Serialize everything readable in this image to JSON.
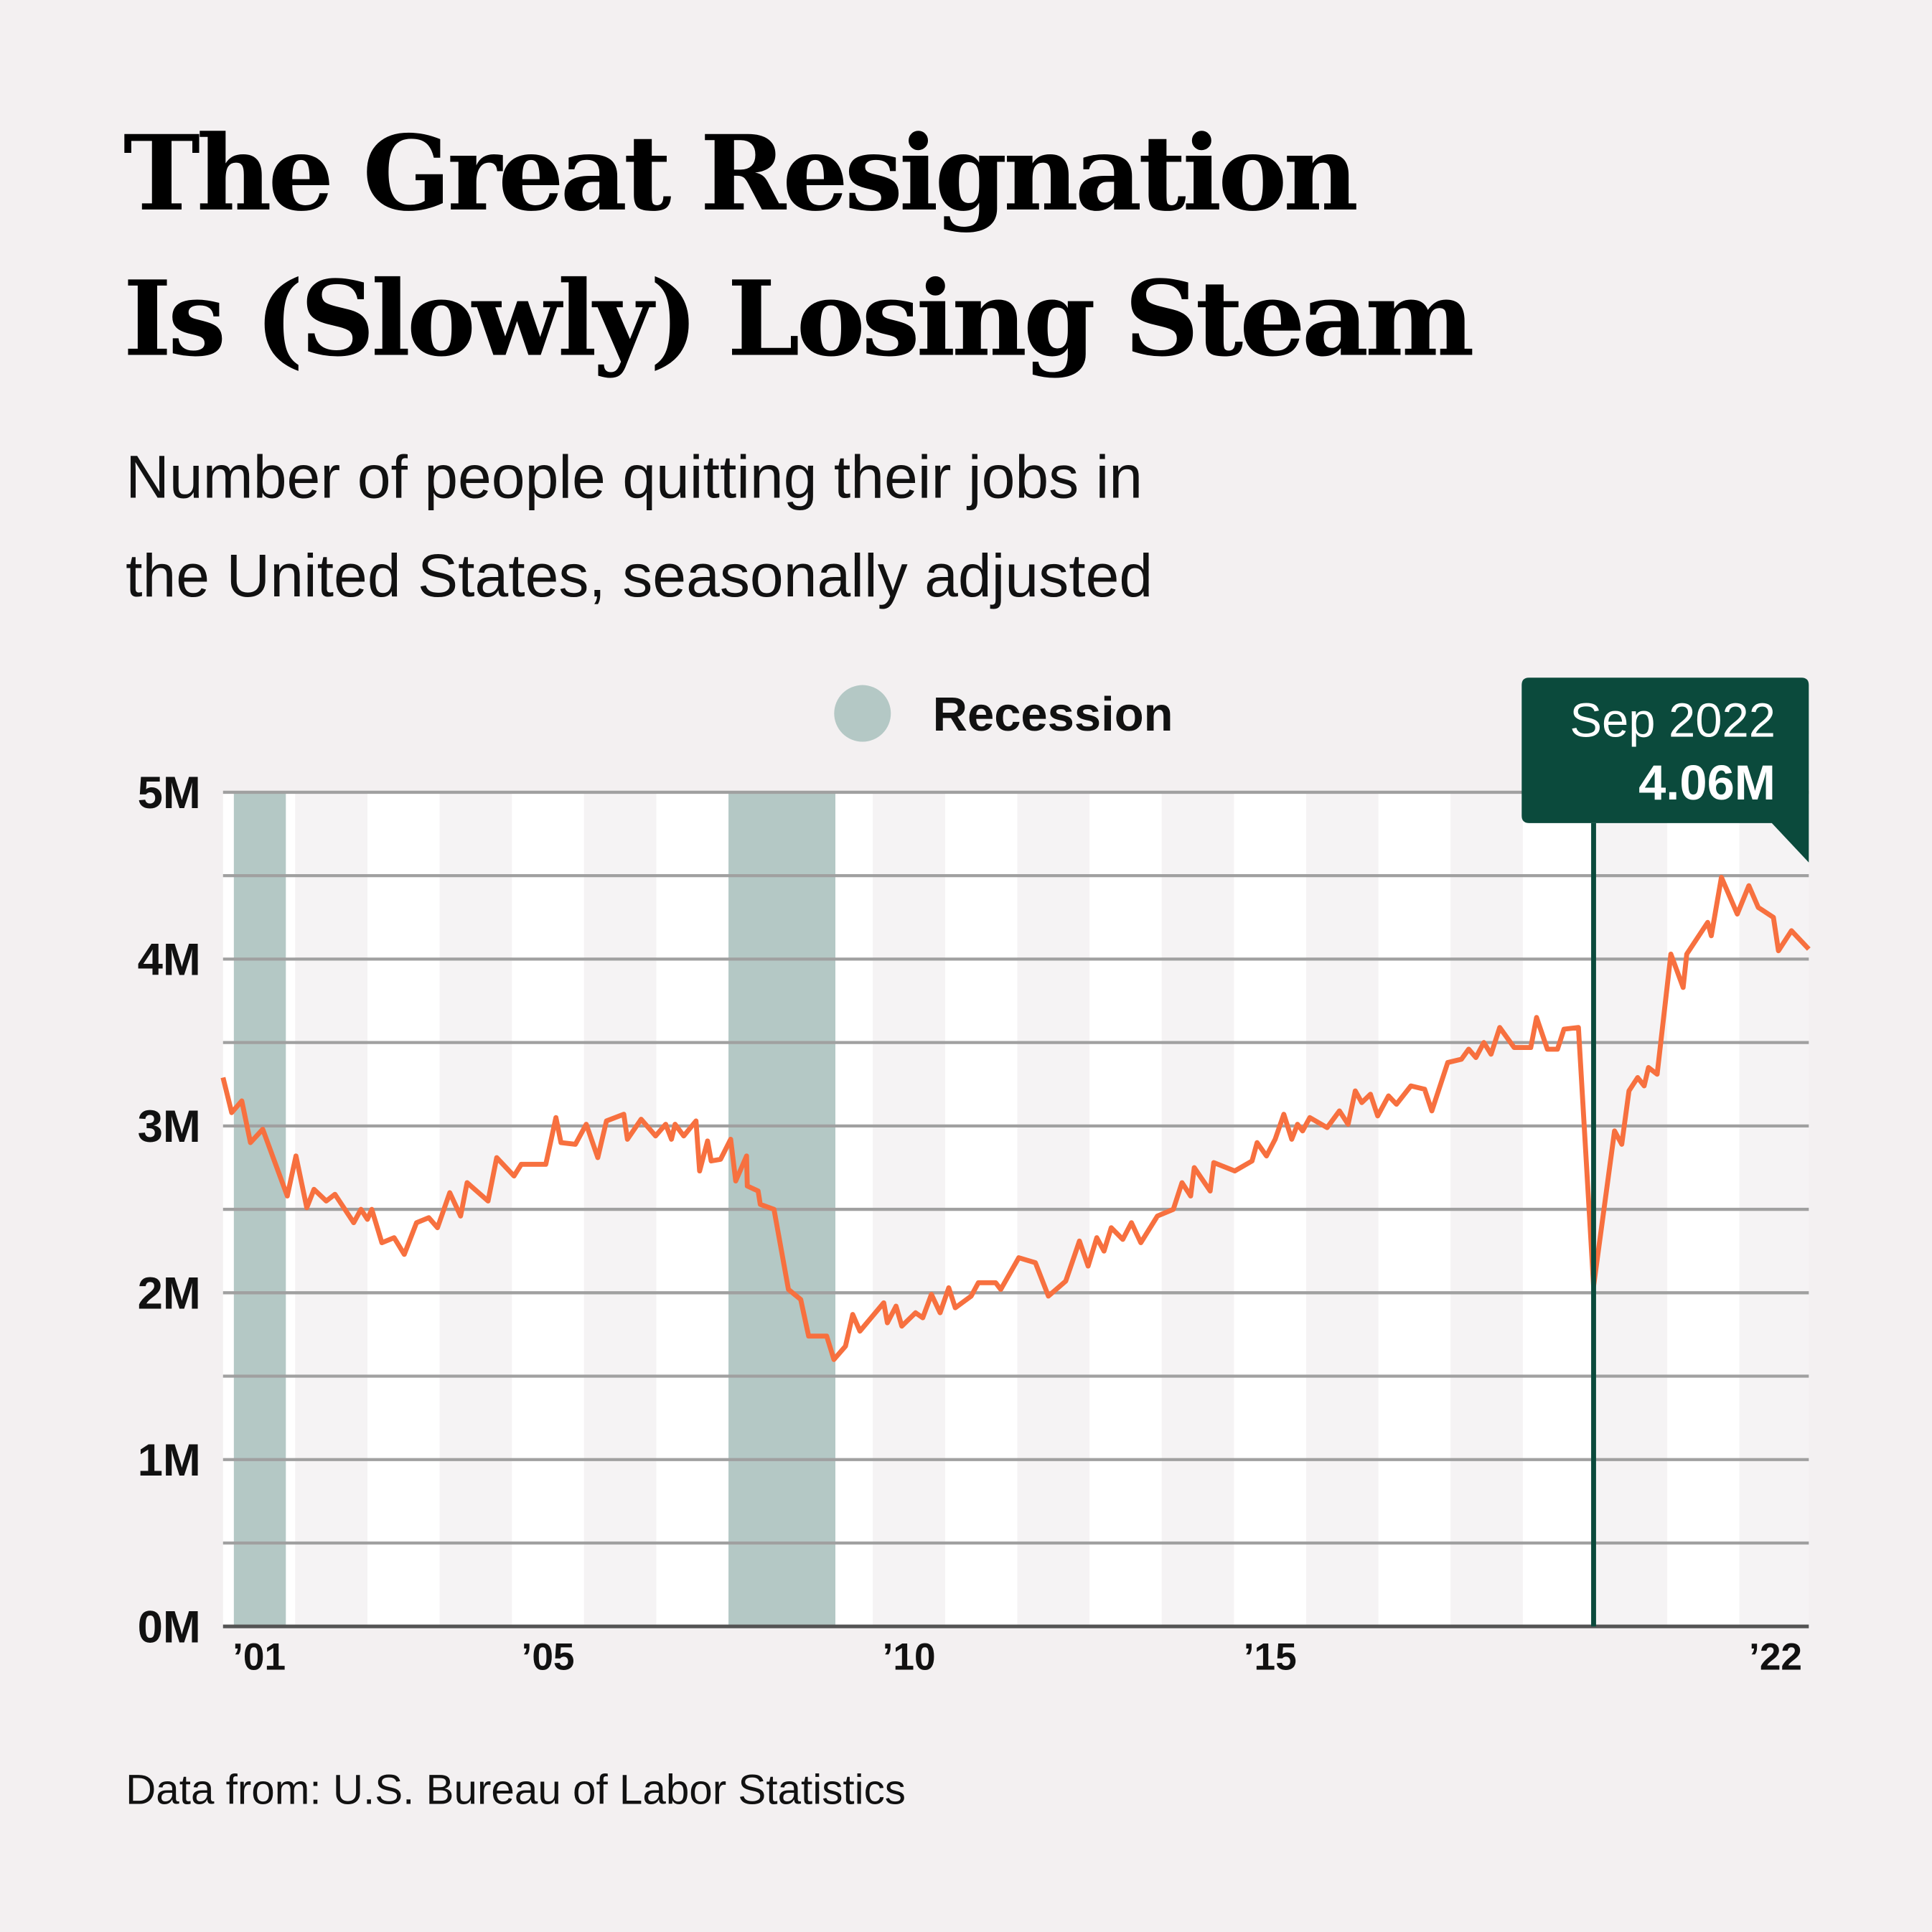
{
  "title_line1": "The Great Resignation",
  "title_line2": "Is (Slowly) Losing Steam",
  "subtitle_line1": "Number of people quitting their jobs in",
  "subtitle_line2": "the United States, seasonally adjusted",
  "footer": "Data from: U.S. Bureau of Labor Statistics",
  "colors": {
    "background": "#f3f0f1",
    "line": "#f7703f",
    "recession": "#b4c8c5",
    "callout": "#0b4a3c",
    "grid": "#a0a0a0",
    "band_light": "#f5f3f4",
    "band_white": "#ffffff"
  },
  "chart_data": {
    "type": "line",
    "title": "The Great Resignation Is (Slowly) Losing Steam",
    "ylabel": "",
    "xlabel": "",
    "xlim": [
      2001.0,
      2022.96
    ],
    "ylim": [
      0,
      5
    ],
    "grid": true,
    "y_ticks": [
      {
        "value": 0,
        "label": "0M"
      },
      {
        "value": 1,
        "label": "1M"
      },
      {
        "value": 2,
        "label": "2M"
      },
      {
        "value": 3,
        "label": "3M"
      },
      {
        "value": 4,
        "label": "4M"
      },
      {
        "value": 5,
        "label": "5M"
      }
    ],
    "x_ticks": [
      {
        "value": 2001.5,
        "label": "’01"
      },
      {
        "value": 2005.5,
        "label": "’05"
      },
      {
        "value": 2010.5,
        "label": "’10"
      },
      {
        "value": 2015.5,
        "label": "’15"
      },
      {
        "value": 2022.5,
        "label": "’22"
      }
    ],
    "legend": {
      "label": "Recession",
      "placement": "top-center"
    },
    "recessions": [
      [
        2001.15,
        2001.87
      ],
      [
        2008.0,
        2009.48
      ]
    ],
    "annotation": {
      "date": "Sep 2022",
      "value_label": "4.06M",
      "marker_x": 2019.98
    },
    "series": [
      {
        "unit": "millions",
        "points": [
          [
            2001.0,
            3.29
          ],
          [
            2001.12,
            3.08
          ],
          [
            2001.26,
            3.15
          ],
          [
            2001.38,
            2.9
          ],
          [
            2001.55,
            2.98
          ],
          [
            2001.89,
            2.58
          ],
          [
            2002.01,
            2.82
          ],
          [
            2002.16,
            2.51
          ],
          [
            2002.26,
            2.62
          ],
          [
            2002.43,
            2.55
          ],
          [
            2002.55,
            2.59
          ],
          [
            2002.81,
            2.42
          ],
          [
            2002.91,
            2.5
          ],
          [
            2003.0,
            2.44
          ],
          [
            2003.06,
            2.5
          ],
          [
            2003.2,
            2.3
          ],
          [
            2003.37,
            2.33
          ],
          [
            2003.51,
            2.23
          ],
          [
            2003.68,
            2.42
          ],
          [
            2003.85,
            2.45
          ],
          [
            2003.97,
            2.39
          ],
          [
            2004.14,
            2.6
          ],
          [
            2004.29,
            2.46
          ],
          [
            2004.38,
            2.66
          ],
          [
            2004.67,
            2.55
          ],
          [
            2004.79,
            2.81
          ],
          [
            2005.03,
            2.7
          ],
          [
            2005.13,
            2.77
          ],
          [
            2005.47,
            2.77
          ],
          [
            2005.61,
            3.05
          ],
          [
            2005.68,
            2.9
          ],
          [
            2005.88,
            2.89
          ],
          [
            2006.03,
            3.01
          ],
          [
            2006.19,
            2.81
          ],
          [
            2006.31,
            3.03
          ],
          [
            2006.55,
            3.07
          ],
          [
            2006.6,
            2.92
          ],
          [
            2006.79,
            3.04
          ],
          [
            2006.99,
            2.94
          ],
          [
            2007.13,
            3.01
          ],
          [
            2007.21,
            2.92
          ],
          [
            2007.26,
            3.01
          ],
          [
            2007.38,
            2.94
          ],
          [
            2007.55,
            3.03
          ],
          [
            2007.6,
            2.73
          ],
          [
            2007.71,
            2.91
          ],
          [
            2007.76,
            2.79
          ],
          [
            2007.89,
            2.8
          ],
          [
            2008.03,
            2.92
          ],
          [
            2008.1,
            2.67
          ],
          [
            2008.25,
            2.82
          ],
          [
            2008.26,
            2.64
          ],
          [
            2008.41,
            2.61
          ],
          [
            2008.44,
            2.53
          ],
          [
            2008.63,
            2.5
          ],
          [
            2008.83,
            2.02
          ],
          [
            2009.0,
            1.96
          ],
          [
            2009.11,
            1.74
          ],
          [
            2009.36,
            1.74
          ],
          [
            2009.46,
            1.6
          ],
          [
            2009.62,
            1.68
          ],
          [
            2009.72,
            1.87
          ],
          [
            2009.82,
            1.77
          ],
          [
            2010.15,
            1.94
          ],
          [
            2010.2,
            1.82
          ],
          [
            2010.32,
            1.92
          ],
          [
            2010.4,
            1.8
          ],
          [
            2010.59,
            1.88
          ],
          [
            2010.69,
            1.85
          ],
          [
            2010.81,
            1.99
          ],
          [
            2010.93,
            1.88
          ],
          [
            2011.05,
            2.03
          ],
          [
            2011.14,
            1.91
          ],
          [
            2011.36,
            1.98
          ],
          [
            2011.46,
            2.06
          ],
          [
            2011.7,
            2.06
          ],
          [
            2011.77,
            2.02
          ],
          [
            2012.02,
            2.21
          ],
          [
            2012.25,
            2.18
          ],
          [
            2012.43,
            1.98
          ],
          [
            2012.67,
            2.07
          ],
          [
            2012.86,
            2.31
          ],
          [
            2012.98,
            2.16
          ],
          [
            2013.1,
            2.33
          ],
          [
            2013.2,
            2.25
          ],
          [
            2013.3,
            2.39
          ],
          [
            2013.46,
            2.32
          ],
          [
            2013.58,
            2.42
          ],
          [
            2013.71,
            2.3
          ],
          [
            2013.94,
            2.46
          ],
          [
            2014.16,
            2.5
          ],
          [
            2014.28,
            2.66
          ],
          [
            2014.4,
            2.58
          ],
          [
            2014.45,
            2.75
          ],
          [
            2014.67,
            2.61
          ],
          [
            2014.72,
            2.78
          ],
          [
            2015.01,
            2.73
          ],
          [
            2015.25,
            2.79
          ],
          [
            2015.32,
            2.9
          ],
          [
            2015.45,
            2.82
          ],
          [
            2015.57,
            2.92
          ],
          [
            2015.69,
            3.07
          ],
          [
            2015.8,
            2.92
          ],
          [
            2015.88,
            3.01
          ],
          [
            2015.95,
            2.97
          ],
          [
            2016.05,
            3.05
          ],
          [
            2016.29,
            2.99
          ],
          [
            2016.46,
            3.09
          ],
          [
            2016.58,
            3.01
          ],
          [
            2016.68,
            3.21
          ],
          [
            2016.77,
            3.14
          ],
          [
            2016.89,
            3.19
          ],
          [
            2016.99,
            3.06
          ],
          [
            2017.14,
            3.18
          ],
          [
            2017.25,
            3.13
          ],
          [
            2017.45,
            3.24
          ],
          [
            2017.64,
            3.22
          ],
          [
            2017.74,
            3.09
          ],
          [
            2017.96,
            3.38
          ],
          [
            2018.15,
            3.4
          ],
          [
            2018.25,
            3.46
          ],
          [
            2018.35,
            3.41
          ],
          [
            2018.46,
            3.5
          ],
          [
            2018.56,
            3.43
          ],
          [
            2018.68,
            3.59
          ],
          [
            2018.88,
            3.47
          ],
          [
            2019.11,
            3.47
          ],
          [
            2019.19,
            3.65
          ],
          [
            2019.34,
            3.46
          ],
          [
            2019.48,
            3.46
          ],
          [
            2019.57,
            3.58
          ],
          [
            2019.77,
            3.59
          ],
          [
            2019.98,
            2.04
          ],
          [
            2020.27,
            2.97
          ],
          [
            2020.37,
            2.89
          ],
          [
            2020.47,
            3.21
          ],
          [
            2020.59,
            3.29
          ],
          [
            2020.68,
            3.24
          ],
          [
            2020.74,
            3.35
          ],
          [
            2020.86,
            3.31
          ],
          [
            2021.05,
            4.03
          ],
          [
            2021.22,
            3.83
          ],
          [
            2021.27,
            4.03
          ],
          [
            2021.56,
            4.22
          ],
          [
            2021.61,
            4.14
          ],
          [
            2021.75,
            4.49
          ],
          [
            2021.97,
            4.27
          ],
          [
            2022.13,
            4.44
          ],
          [
            2022.26,
            4.31
          ],
          [
            2022.47,
            4.25
          ],
          [
            2022.54,
            4.05
          ],
          [
            2022.72,
            4.17
          ],
          [
            2022.96,
            4.06
          ]
        ]
      }
    ]
  }
}
